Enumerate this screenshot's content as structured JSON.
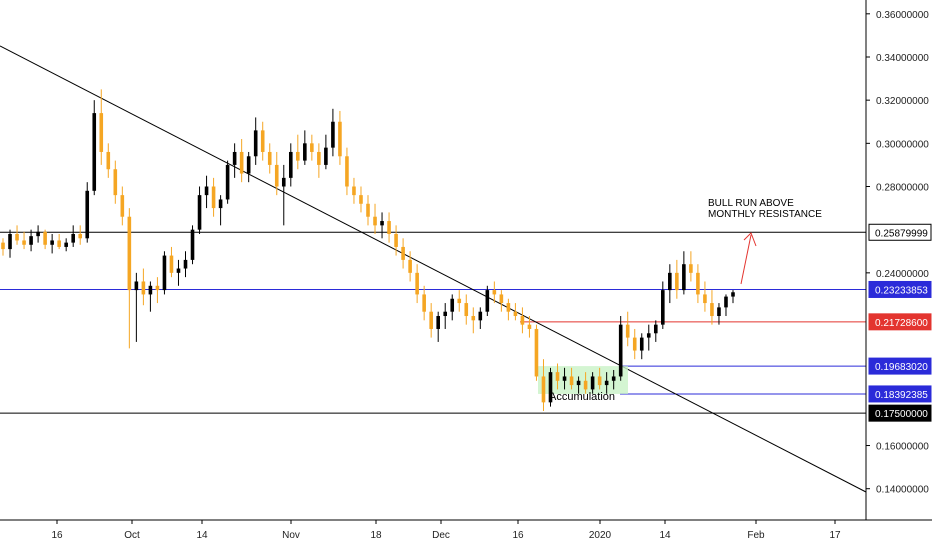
{
  "chart_data": {
    "type": "candlestick",
    "title": "",
    "xlabel": "",
    "ylabel": "",
    "ylim": [
      0.1255,
      0.3664
    ],
    "grid": false,
    "colors": {
      "up": "#000000",
      "down": "#f5a623",
      "trend": "#000000",
      "annotation_arrow": "#e3342f"
    },
    "x_ticks": [
      "16",
      "Oct",
      "14",
      "Nov",
      "18",
      "Dec",
      "16",
      "2020",
      "14",
      "Feb",
      "17"
    ],
    "y_ticks": [
      "0.36000000",
      "0.34000000",
      "0.32000000",
      "0.30000000",
      "0.28000000",
      "0.24000000",
      "0.16000000",
      "0.14000000"
    ],
    "price_levels": [
      {
        "label": "0.25879999",
        "value": 0.2588,
        "line_color": "#000000",
        "badge_bg": "#ffffff",
        "badge_fg": "#000000"
      },
      {
        "label": "0.23233853",
        "value": 0.2323,
        "line_color": "#2b2bd9",
        "badge_bg": "#2b2bd9",
        "badge_fg": "#ffffff"
      },
      {
        "label": "0.21728600",
        "value": 0.2173,
        "line_color": "#e3342f",
        "badge_bg": "#e3342f",
        "badge_fg": "#ffffff"
      },
      {
        "label": "0.19683020",
        "value": 0.1968,
        "line_color": "#2b2bd9",
        "badge_bg": "#2b2bd9",
        "badge_fg": "#ffffff"
      },
      {
        "label": "0.18392385",
        "value": 0.1839,
        "line_color": "#2b2bd9",
        "badge_bg": "#2b2bd9",
        "badge_fg": "#ffffff"
      },
      {
        "label": "0.17500000",
        "value": 0.175,
        "line_color": "#000000",
        "badge_bg": "#000000",
        "badge_fg": "#ffffff"
      }
    ],
    "annotations": {
      "bull_run": [
        "BULL RUN ABOVE",
        "MONTHLY RESISTANCE"
      ],
      "accumulation": "Accumulation"
    },
    "candles": [
      [
        0.254,
        0.256,
        0.248,
        0.251
      ],
      [
        0.251,
        0.26,
        0.247,
        0.258
      ],
      [
        0.258,
        0.262,
        0.253,
        0.255
      ],
      [
        0.255,
        0.259,
        0.251,
        0.253
      ],
      [
        0.253,
        0.26,
        0.25,
        0.257
      ],
      [
        0.257,
        0.262,
        0.254,
        0.259
      ],
      [
        0.259,
        0.26,
        0.251,
        0.253
      ],
      [
        0.253,
        0.258,
        0.249,
        0.255
      ],
      [
        0.255,
        0.258,
        0.251,
        0.252
      ],
      [
        0.252,
        0.256,
        0.25,
        0.254
      ],
      [
        0.254,
        0.262,
        0.252,
        0.258
      ],
      [
        0.258,
        0.262,
        0.253,
        0.256
      ],
      [
        0.256,
        0.282,
        0.254,
        0.278
      ],
      [
        0.278,
        0.32,
        0.276,
        0.314
      ],
      [
        0.314,
        0.325,
        0.29,
        0.296
      ],
      [
        0.296,
        0.3,
        0.284,
        0.288
      ],
      [
        0.288,
        0.292,
        0.272,
        0.276
      ],
      [
        0.276,
        0.28,
        0.262,
        0.266
      ],
      [
        0.266,
        0.27,
        0.205,
        0.232
      ],
      [
        0.232,
        0.24,
        0.208,
        0.236
      ],
      [
        0.236,
        0.242,
        0.225,
        0.23
      ],
      [
        0.23,
        0.236,
        0.222,
        0.234
      ],
      [
        0.234,
        0.238,
        0.226,
        0.232
      ],
      [
        0.232,
        0.25,
        0.23,
        0.248
      ],
      [
        0.248,
        0.252,
        0.238,
        0.24
      ],
      [
        0.24,
        0.246,
        0.234,
        0.242
      ],
      [
        0.242,
        0.25,
        0.238,
        0.246
      ],
      [
        0.246,
        0.262,
        0.244,
        0.26
      ],
      [
        0.26,
        0.28,
        0.258,
        0.276
      ],
      [
        0.276,
        0.285,
        0.27,
        0.28
      ],
      [
        0.28,
        0.284,
        0.266,
        0.27
      ],
      [
        0.27,
        0.276,
        0.262,
        0.274
      ],
      [
        0.274,
        0.292,
        0.272,
        0.29
      ],
      [
        0.29,
        0.3,
        0.284,
        0.296
      ],
      [
        0.296,
        0.302,
        0.282,
        0.286
      ],
      [
        0.286,
        0.296,
        0.282,
        0.294
      ],
      [
        0.294,
        0.312,
        0.29,
        0.306
      ],
      [
        0.306,
        0.31,
        0.292,
        0.296
      ],
      [
        0.296,
        0.3,
        0.286,
        0.29
      ],
      [
        0.29,
        0.296,
        0.276,
        0.28
      ],
      [
        0.28,
        0.29,
        0.262,
        0.284
      ],
      [
        0.284,
        0.3,
        0.28,
        0.296
      ],
      [
        0.296,
        0.304,
        0.288,
        0.292
      ],
      [
        0.292,
        0.306,
        0.29,
        0.3
      ],
      [
        0.3,
        0.304,
        0.292,
        0.296
      ],
      [
        0.296,
        0.3,
        0.284,
        0.29
      ],
      [
        0.29,
        0.304,
        0.288,
        0.298
      ],
      [
        0.298,
        0.316,
        0.294,
        0.31
      ],
      [
        0.31,
        0.315,
        0.29,
        0.294
      ],
      [
        0.294,
        0.298,
        0.276,
        0.28
      ],
      [
        0.28,
        0.284,
        0.272,
        0.276
      ],
      [
        0.276,
        0.28,
        0.268,
        0.272
      ],
      [
        0.272,
        0.276,
        0.262,
        0.266
      ],
      [
        0.266,
        0.272,
        0.258,
        0.262
      ],
      [
        0.262,
        0.268,
        0.256,
        0.264
      ],
      [
        0.264,
        0.268,
        0.254,
        0.258
      ],
      [
        0.258,
        0.262,
        0.248,
        0.252
      ],
      [
        0.252,
        0.256,
        0.242,
        0.246
      ],
      [
        0.246,
        0.25,
        0.236,
        0.24
      ],
      [
        0.24,
        0.244,
        0.226,
        0.23
      ],
      [
        0.23,
        0.234,
        0.218,
        0.222
      ],
      [
        0.222,
        0.226,
        0.21,
        0.214
      ],
      [
        0.214,
        0.222,
        0.208,
        0.22
      ],
      [
        0.22,
        0.226,
        0.214,
        0.222
      ],
      [
        0.222,
        0.23,
        0.218,
        0.228
      ],
      [
        0.228,
        0.232,
        0.222,
        0.226
      ],
      [
        0.226,
        0.23,
        0.216,
        0.22
      ],
      [
        0.22,
        0.224,
        0.212,
        0.218
      ],
      [
        0.218,
        0.224,
        0.214,
        0.222
      ],
      [
        0.222,
        0.234,
        0.22,
        0.232
      ],
      [
        0.232,
        0.236,
        0.226,
        0.23
      ],
      [
        0.23,
        0.232,
        0.222,
        0.226
      ],
      [
        0.226,
        0.228,
        0.218,
        0.222
      ],
      [
        0.222,
        0.226,
        0.218,
        0.22
      ],
      [
        0.22,
        0.224,
        0.212,
        0.216
      ],
      [
        0.216,
        0.22,
        0.21,
        0.214
      ],
      [
        0.214,
        0.216,
        0.19,
        0.192
      ],
      [
        0.192,
        0.2,
        0.176,
        0.18
      ],
      [
        0.18,
        0.196,
        0.178,
        0.194
      ],
      [
        0.194,
        0.198,
        0.186,
        0.19
      ],
      [
        0.19,
        0.196,
        0.186,
        0.192
      ],
      [
        0.192,
        0.196,
        0.186,
        0.188
      ],
      [
        0.188,
        0.192,
        0.184,
        0.19
      ],
      [
        0.19,
        0.194,
        0.184,
        0.186
      ],
      [
        0.186,
        0.194,
        0.184,
        0.192
      ],
      [
        0.192,
        0.196,
        0.186,
        0.188
      ],
      [
        0.188,
        0.194,
        0.184,
        0.19
      ],
      [
        0.19,
        0.195,
        0.186,
        0.192
      ],
      [
        0.192,
        0.22,
        0.19,
        0.216
      ],
      [
        0.216,
        0.222,
        0.206,
        0.21
      ],
      [
        0.21,
        0.214,
        0.2,
        0.204
      ],
      [
        0.204,
        0.212,
        0.2,
        0.21
      ],
      [
        0.21,
        0.216,
        0.204,
        0.212
      ],
      [
        0.212,
        0.218,
        0.208,
        0.216
      ],
      [
        0.216,
        0.236,
        0.214,
        0.232
      ],
      [
        0.232,
        0.244,
        0.226,
        0.24
      ],
      [
        0.24,
        0.246,
        0.228,
        0.232
      ],
      [
        0.232,
        0.25,
        0.23,
        0.244
      ],
      [
        0.244,
        0.25,
        0.236,
        0.24
      ],
      [
        0.24,
        0.244,
        0.226,
        0.23
      ],
      [
        0.23,
        0.236,
        0.222,
        0.226
      ],
      [
        0.226,
        0.232,
        0.216,
        0.22
      ],
      [
        0.22,
        0.226,
        0.216,
        0.224
      ],
      [
        0.224,
        0.23,
        0.22,
        0.229
      ],
      [
        0.229,
        0.232,
        0.226,
        0.231
      ]
    ]
  }
}
